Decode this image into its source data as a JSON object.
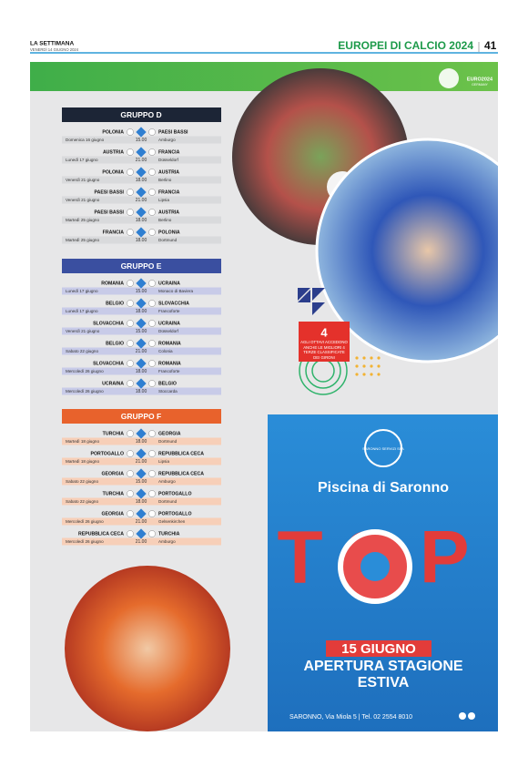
{
  "header": {
    "publication": "LA SETTIMANA",
    "date": "VENERDÌ 14 GIUGNO 2024",
    "section": "EUROPEI DI CALCIO 2024",
    "page": "41"
  },
  "logo": {
    "name": "EURO2024",
    "country": "GERMANY"
  },
  "groups": [
    {
      "title": "GRUPPO D",
      "matches": [
        {
          "home": "POLONIA",
          "away": "PAESI BASSI",
          "date": "Domenica 16 giugno",
          "time": "15.00",
          "city": "Amburgo"
        },
        {
          "home": "AUSTRIA",
          "away": "FRANCIA",
          "date": "Lunedì 17 giugno",
          "time": "21.00",
          "city": "Düsseldorf"
        },
        {
          "home": "POLONIA",
          "away": "AUSTRIA",
          "date": "Venerdì 21 giugno",
          "time": "18.00",
          "city": "Berlino"
        },
        {
          "home": "PAESI BASSI",
          "away": "FRANCIA",
          "date": "Venerdì 21 giugno",
          "time": "21.00",
          "city": "Lipsia"
        },
        {
          "home": "PAESI BASSI",
          "away": "AUSTRIA",
          "date": "Martedì 25 giugno",
          "time": "18.00",
          "city": "Berlino"
        },
        {
          "home": "FRANCIA",
          "away": "POLONIA",
          "date": "Martedì 25 giugno",
          "time": "18.00",
          "city": "Dortmund"
        }
      ]
    },
    {
      "title": "GRUPPO E",
      "matches": [
        {
          "home": "ROMANIA",
          "away": "UCRAINA",
          "date": "Lunedì 17 giugno",
          "time": "15.00",
          "city": "Monaco di Baviera"
        },
        {
          "home": "BELGIO",
          "away": "SLOVACCHIA",
          "date": "Lunedì 17 giugno",
          "time": "18.00",
          "city": "Francoforte"
        },
        {
          "home": "SLOVACCHIA",
          "away": "UCRAINA",
          "date": "Venerdì 21 giugno",
          "time": "15.00",
          "city": "Düsseldorf"
        },
        {
          "home": "BELGIO",
          "away": "ROMANIA",
          "date": "Sabato 22 giugno",
          "time": "21.00",
          "city": "Colonia"
        },
        {
          "home": "SLOVACCHIA",
          "away": "ROMANIA",
          "date": "Mercoledì 26 giugno",
          "time": "18.00",
          "city": "Francoforte"
        },
        {
          "home": "UCRAINA",
          "away": "BELGIO",
          "date": "Mercoledì 26 giugno",
          "time": "18.00",
          "city": "Stoccarda"
        }
      ]
    },
    {
      "title": "GRUPPO F",
      "matches": [
        {
          "home": "TURCHIA",
          "away": "GEORGIA",
          "date": "Martedì 18 giugno",
          "time": "18.00",
          "city": "Dortmund"
        },
        {
          "home": "PORTOGALLO",
          "away": "REPUBBLICA CECA",
          "date": "Martedì 18 giugno",
          "time": "21.00",
          "city": "Lipsia"
        },
        {
          "home": "GEORGIA",
          "away": "REPUBBLICA CECA",
          "date": "Sabato 22 giugno",
          "time": "15.00",
          "city": "Amburgo"
        },
        {
          "home": "TURCHIA",
          "away": "PORTOGALLO",
          "date": "Sabato 22 giugno",
          "time": "18.00",
          "city": "Dortmund"
        },
        {
          "home": "GEORGIA",
          "away": "PORTOGALLO",
          "date": "Mercoledì 26 giugno",
          "time": "21.00",
          "city": "Gelsenkirchen"
        },
        {
          "home": "REPUBBLICA CECA",
          "away": "TURCHIA",
          "date": "Mercoledì 26 giugno",
          "time": "21.00",
          "city": "Amburgo"
        }
      ]
    }
  ],
  "info": {
    "number": "4",
    "text": "AGLI OTTAVI ACCEDONO ANCHE LE MIGLIORI 4 TERZE CLASSIFICATE DEI GIRONI"
  },
  "ad": {
    "company": "SARONNO SERVIZI SPA",
    "title": "Piscina di Saronno",
    "headline": "TOP",
    "date": "15 GIUGNO",
    "subtitle": "APERTURA STAGIONE ESTIVA",
    "address": "SARONNO, Via Miola 5 | Tel. 02 2554 8010"
  }
}
